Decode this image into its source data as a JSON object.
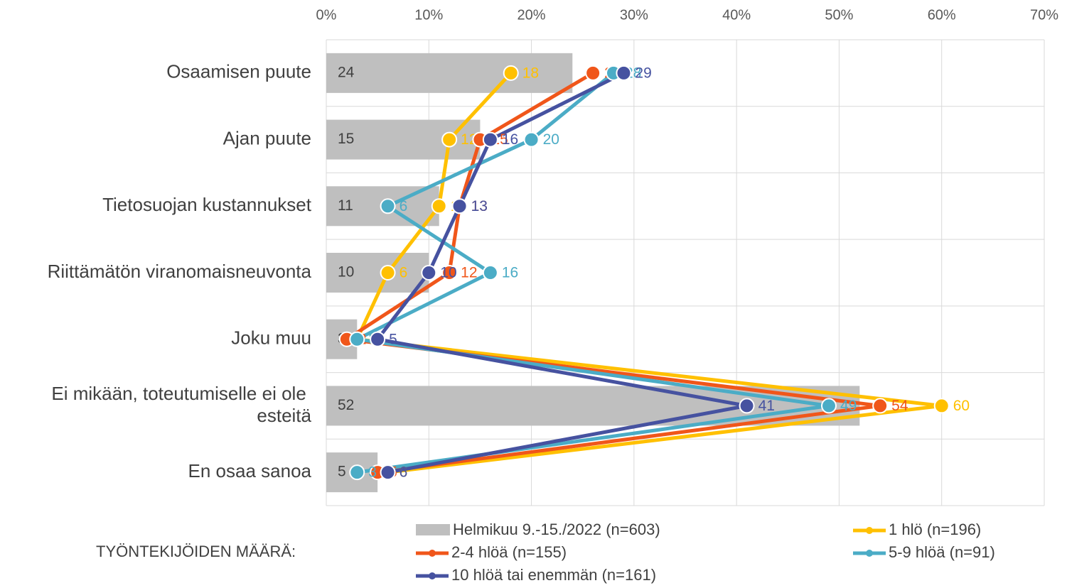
{
  "chart_data": {
    "type": "bar-line",
    "legend_title": "TYÖNTEKIJÖIDEN MÄÄRÄ:",
    "categories": [
      "Osaamisen puute",
      "Ajan puute",
      "Tietosuojan kustannukset",
      "Riittämätön viranomaisneuvonta",
      "Joku muu",
      "Ei mikään, toteutumiselle ei ole esteitä",
      "En osaa sanoa"
    ],
    "bar_series": {
      "name": "Helmikuu 9.-15./2022 (n=603)",
      "color": "#bfbfbf",
      "values": [
        24,
        15,
        11,
        10,
        3,
        52,
        5
      ]
    },
    "series": [
      {
        "name": "1 hlö (n=196)",
        "color": "#ffc000",
        "values": [
          18,
          12,
          11,
          6,
          3,
          60,
          6
        ]
      },
      {
        "name": "2-4 hlöä (n=155)",
        "color": "#f0561a",
        "values": [
          26,
          15,
          13,
          12,
          2,
          54,
          5
        ]
      },
      {
        "name": "5-9 hlöä (n=91)",
        "color": "#4bacc6",
        "values": [
          28,
          20,
          6,
          16,
          3,
          49,
          3
        ]
      },
      {
        "name": "10 hlöä tai enemmän (n=161)",
        "color": "#4652a0",
        "values": [
          29,
          16,
          13,
          10,
          5,
          41,
          6
        ]
      }
    ],
    "xlim": [
      0,
      70
    ],
    "xticks": [
      {
        "value": 0,
        "label": "0%"
      },
      {
        "value": 10,
        "label": "10%"
      },
      {
        "value": 20,
        "label": "20%"
      },
      {
        "value": 30,
        "label": "30%"
      },
      {
        "value": 40,
        "label": "40%"
      },
      {
        "value": 50,
        "label": "50%"
      },
      {
        "value": 60,
        "label": "60%"
      },
      {
        "value": 70,
        "label": "70%"
      }
    ],
    "grid": true
  }
}
